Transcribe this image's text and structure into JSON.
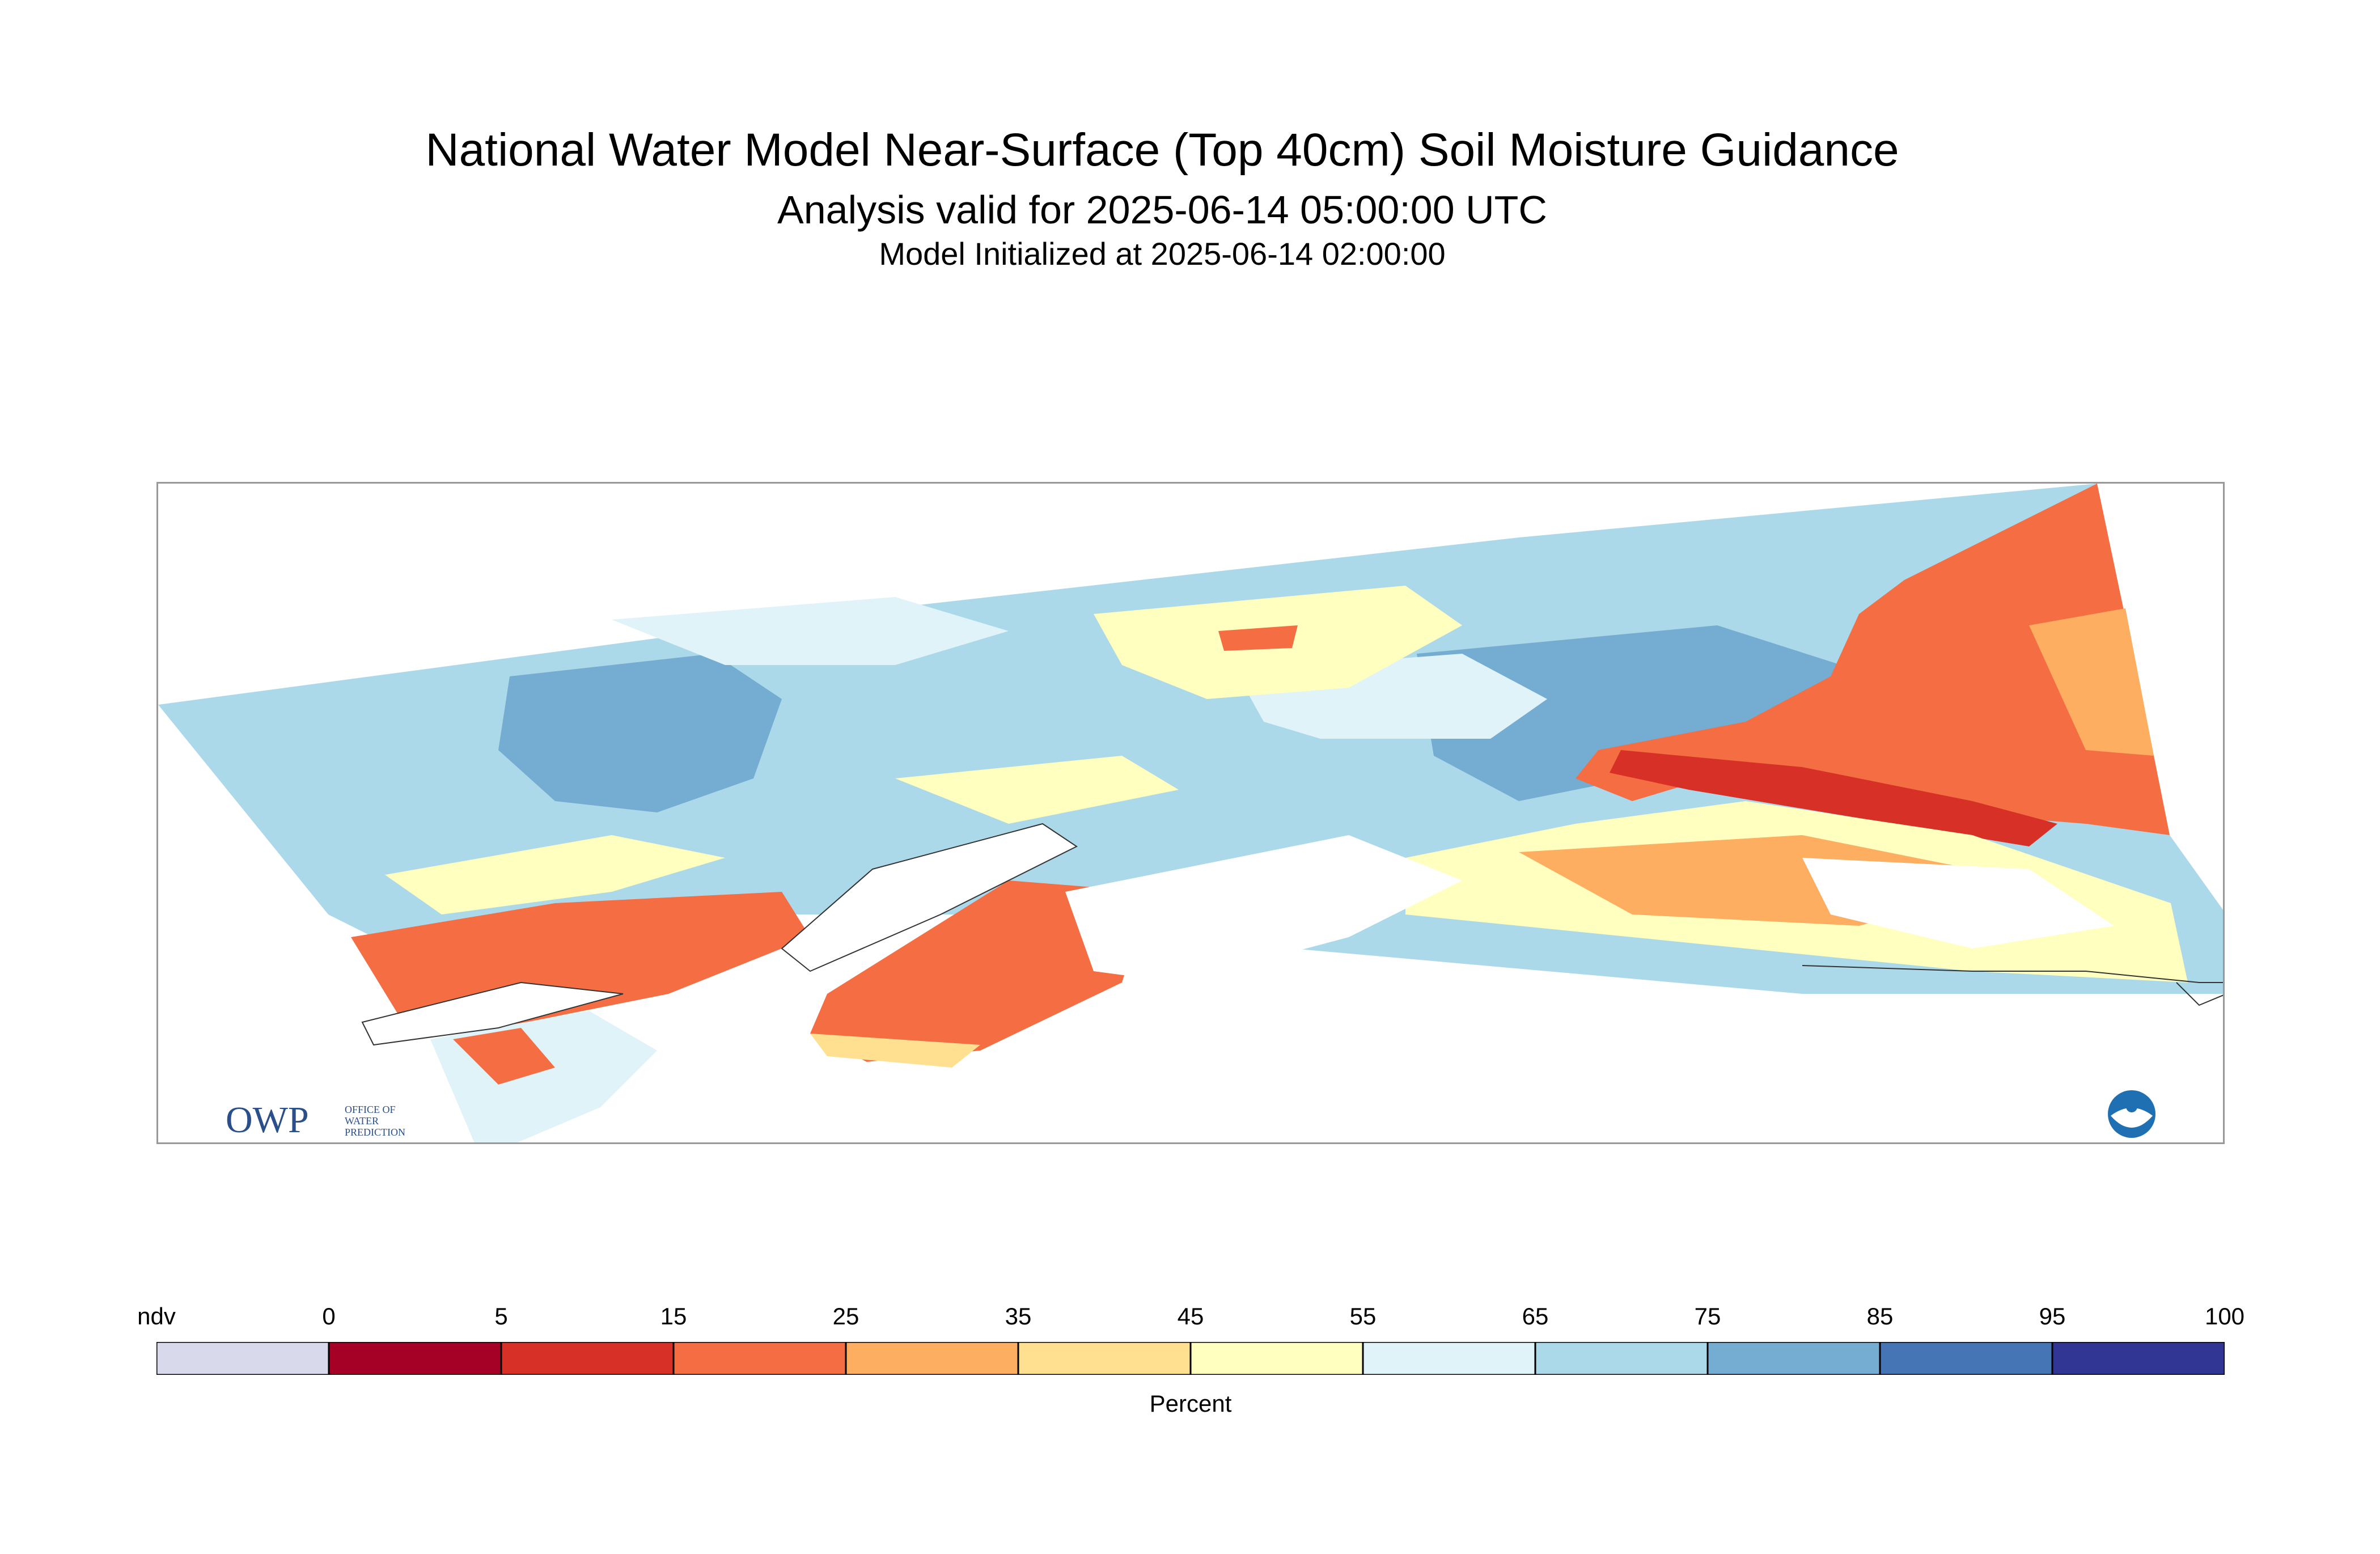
{
  "title": "National Water Model Near-Surface (Top 40cm) Soil Moisture Guidance",
  "subtitle": "Analysis valid for 2025-06-14 05:00:00 UTC",
  "init_line": "Model Initialized at 2025-06-14 02:00:00",
  "colorbar": {
    "units": "Percent",
    "tick_labels": [
      "ndv",
      "0",
      "5",
      "15",
      "25",
      "35",
      "45",
      "55",
      "65",
      "75",
      "85",
      "95",
      "100"
    ],
    "bins": [
      {
        "range": "ndv",
        "color": "#d9d9ec"
      },
      {
        "range": "0-5",
        "color": "#a50026"
      },
      {
        "range": "5-15",
        "color": "#d73027"
      },
      {
        "range": "15-25",
        "color": "#f46d43"
      },
      {
        "range": "25-35",
        "color": "#fdae61"
      },
      {
        "range": "35-45",
        "color": "#fee090"
      },
      {
        "range": "45-55",
        "color": "#ffffbf"
      },
      {
        "range": "55-65",
        "color": "#e0f3f8"
      },
      {
        "range": "65-75",
        "color": "#abd9e9"
      },
      {
        "range": "75-85",
        "color": "#74add1"
      },
      {
        "range": "85-95",
        "color": "#4575b4"
      },
      {
        "range": "95-100",
        "color": "#313695"
      }
    ]
  },
  "logos": {
    "owp_wordmark": "OWP",
    "owp_text_lines": [
      "OFFICE OF",
      "WATER",
      "PREDICTION"
    ],
    "noaa_icon": "noaa-logo-icon"
  }
}
